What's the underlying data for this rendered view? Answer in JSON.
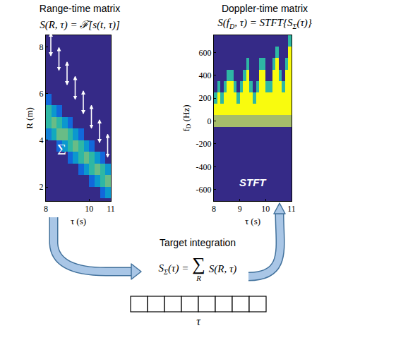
{
  "chart_data": [
    {
      "type": "heatmap",
      "title": "Range-time matrix",
      "formula": [
        {
          "t": "S(R, τ) = ℱ[s(t, τ)]"
        }
      ],
      "xlabel": [
        {
          "t": "τ (s)"
        }
      ],
      "ylabel": [
        {
          "t": "R (m)"
        }
      ],
      "annotation": "Σ",
      "xlim": [
        8,
        11
      ],
      "xticks": [
        8,
        10,
        11
      ],
      "ylim": [
        1.4,
        8.5
      ],
      "yticks": [
        2,
        4,
        6,
        8
      ],
      "zlim": [
        0,
        1
      ],
      "x": [
        8.125,
        8.375,
        8.625,
        8.875,
        9.125,
        9.375,
        9.625,
        9.875,
        10.125,
        10.375,
        10.625,
        10.875
      ],
      "y": [
        1.25,
        1.75,
        2.25,
        2.75,
        3.25,
        3.75,
        4.25,
        4.75,
        5.25,
        5.75,
        6.25,
        6.75,
        7.25,
        7.75,
        8.25
      ],
      "z": [
        [
          0,
          0,
          0,
          0,
          0,
          0,
          0,
          0,
          0,
          0,
          0,
          0
        ],
        [
          0,
          0,
          0,
          0,
          0,
          0,
          0,
          0,
          0,
          0,
          0.2,
          0.4
        ],
        [
          0,
          0,
          0,
          0,
          0,
          0,
          0,
          0,
          0.2,
          0.4,
          0.6,
          0.7
        ],
        [
          0,
          0,
          0,
          0,
          0,
          0,
          0.2,
          0.4,
          0.6,
          0.7,
          0.6,
          0.4
        ],
        [
          0,
          0,
          0,
          0,
          0.2,
          0.4,
          0.6,
          0.7,
          0.6,
          0.4,
          0.2,
          0
        ],
        [
          0,
          0,
          0.2,
          0.4,
          0.6,
          0.7,
          0.6,
          0.4,
          0.2,
          0,
          0,
          0
        ],
        [
          0.3,
          0.5,
          0.7,
          0.7,
          0.6,
          0.4,
          0.2,
          0,
          0,
          0,
          0,
          0
        ],
        [
          0.6,
          0.7,
          0.6,
          0.4,
          0.2,
          0,
          0,
          0,
          0,
          0,
          0,
          0
        ],
        [
          0.6,
          0.4,
          0.2,
          0,
          0,
          0,
          0,
          0,
          0,
          0,
          0,
          0
        ],
        [
          0.2,
          0,
          0,
          0,
          0,
          0,
          0,
          0,
          0,
          0,
          0,
          0
        ],
        [
          0,
          0,
          0,
          0,
          0,
          0,
          0,
          0,
          0,
          0,
          0,
          0
        ],
        [
          0,
          0,
          0,
          0,
          0,
          0,
          0,
          0,
          0,
          0,
          0,
          0
        ],
        [
          0,
          0,
          0,
          0,
          0,
          0,
          0,
          0,
          0,
          0,
          0,
          0
        ],
        [
          0,
          0,
          0,
          0,
          0,
          0,
          0,
          0,
          0,
          0,
          0,
          0
        ],
        [
          0,
          0,
          0,
          0,
          0,
          0,
          0,
          0,
          0,
          0,
          0,
          0
        ]
      ]
    },
    {
      "type": "heatmap",
      "title": "Doppler-time matrix",
      "formula": [
        {
          "t": "S(f"
        },
        {
          "t": "D",
          "sub": true
        },
        {
          "t": ", τ) = STFT{S"
        },
        {
          "t": "Σ",
          "sub": true
        },
        {
          "t": "(τ)}"
        }
      ],
      "xlabel": [
        {
          "t": "τ (s)"
        }
      ],
      "ylabel": [
        {
          "t": "f"
        },
        {
          "t": "D",
          "sub": true
        },
        {
          "t": " (Hz)"
        }
      ],
      "annotation": "STFT",
      "xlim": [
        8,
        11
      ],
      "xticks": [
        8,
        9,
        10,
        11
      ],
      "ylim": [
        -700,
        750
      ],
      "yticks": [
        -600,
        -400,
        -200,
        0,
        200,
        400,
        600
      ],
      "zlim": [
        0,
        1
      ],
      "x": [
        8.0625,
        8.1875,
        8.3125,
        8.4375,
        8.5625,
        8.6875,
        8.8125,
        8.9375,
        9.0625,
        9.1875,
        9.3125,
        9.4375,
        9.5625,
        9.6875,
        9.8125,
        9.9375,
        10.0625,
        10.1875,
        10.3125,
        10.4375,
        10.5625,
        10.6875,
        10.8125,
        10.9375
      ],
      "y": [
        -700,
        -600,
        -500,
        -400,
        -300,
        -200,
        -100,
        0,
        100,
        200,
        300,
        400,
        500,
        600,
        700
      ],
      "z": [
        [
          0,
          0,
          0,
          0,
          0,
          0,
          0,
          0,
          0,
          0,
          0,
          0,
          0,
          0,
          0,
          0,
          0,
          0,
          0,
          0,
          0,
          0,
          0,
          0
        ],
        [
          0,
          0,
          0,
          0,
          0,
          0,
          0,
          0,
          0,
          0,
          0,
          0,
          0,
          0,
          0,
          0,
          0,
          0,
          0,
          0,
          0,
          0,
          0,
          0
        ],
        [
          0,
          0,
          0,
          0,
          0,
          0,
          0,
          0,
          0,
          0,
          0,
          0,
          0,
          0,
          0,
          0,
          0,
          0,
          0,
          0,
          0,
          0,
          0,
          0
        ],
        [
          0,
          0,
          0,
          0,
          0,
          0,
          0,
          0,
          0,
          0,
          0,
          0,
          0,
          0,
          0,
          0,
          0,
          0,
          0,
          0,
          0,
          0,
          0,
          0
        ],
        [
          0,
          0,
          0,
          0,
          0,
          0,
          0,
          0,
          0,
          0,
          0,
          0,
          0,
          0,
          0,
          0,
          0,
          0,
          0,
          0,
          0,
          0,
          0,
          0
        ],
        [
          0,
          0,
          0,
          0,
          0,
          0,
          0,
          0,
          0,
          0,
          0,
          0,
          0,
          0,
          0,
          0,
          0,
          0,
          0,
          0,
          0,
          0,
          0,
          0
        ],
        [
          0,
          0,
          0,
          0,
          0,
          0,
          0,
          0,
          0,
          0,
          0,
          0,
          0,
          0,
          0,
          0,
          0,
          0,
          0,
          0,
          0,
          0,
          0,
          0
        ],
        [
          0.8,
          0.8,
          0.8,
          0.8,
          0.8,
          0.8,
          0.8,
          0.8,
          0.8,
          0.8,
          0.8,
          0.8,
          0.8,
          0.8,
          0.8,
          0.8,
          0.8,
          0.8,
          0.8,
          0.8,
          0.8,
          0.8,
          0.8,
          0.8
        ],
        [
          1,
          1,
          1,
          1,
          1,
          1,
          1,
          1,
          1,
          1,
          1,
          1,
          1,
          1,
          1,
          1,
          1,
          1,
          1,
          1,
          1,
          1,
          1,
          1
        ],
        [
          0.6,
          1,
          0.6,
          1,
          1,
          1,
          1,
          0.6,
          1,
          1,
          1,
          1,
          0.6,
          1,
          1,
          1,
          1,
          1,
          1,
          1,
          1,
          1,
          1,
          1
        ],
        [
          0,
          0.6,
          0,
          0.6,
          1,
          1,
          0.6,
          0,
          0.6,
          1,
          1,
          0.6,
          0,
          0.6,
          1,
          1,
          0.6,
          0.6,
          1,
          1,
          1,
          0.6,
          1,
          1
        ],
        [
          0,
          0,
          0,
          0,
          0.6,
          0.6,
          0,
          0,
          0,
          0.6,
          1,
          0,
          0,
          0,
          1,
          1,
          0,
          0,
          1,
          1,
          0.6,
          0,
          1,
          1
        ],
        [
          0,
          0,
          0,
          0,
          0,
          0,
          0,
          0,
          0,
          0,
          0.6,
          0,
          0,
          0,
          0.6,
          0.6,
          0,
          0,
          0.6,
          1,
          0,
          0,
          0.6,
          1
        ],
        [
          0,
          0,
          0,
          0,
          0,
          0,
          0,
          0,
          0,
          0,
          0,
          0,
          0,
          0,
          0,
          0,
          0,
          0,
          0,
          0.6,
          0,
          0,
          0,
          1
        ],
        [
          0,
          0,
          0,
          0,
          0,
          0,
          0,
          0,
          0,
          0,
          0,
          0,
          0,
          0,
          0,
          0,
          0,
          0,
          0,
          0,
          0,
          0,
          0,
          0.6
        ]
      ]
    }
  ],
  "diagram": {
    "integration": {
      "label": "Target integration",
      "lhs": [
        {
          "t": "S"
        },
        {
          "t": "Σ",
          "sub": true
        },
        {
          "t": "(τ) ="
        }
      ],
      "operator": "∑",
      "operator_index": "R",
      "rhs": "S(R, τ)"
    },
    "vector": {
      "cells": 8,
      "label": "τ"
    }
  }
}
